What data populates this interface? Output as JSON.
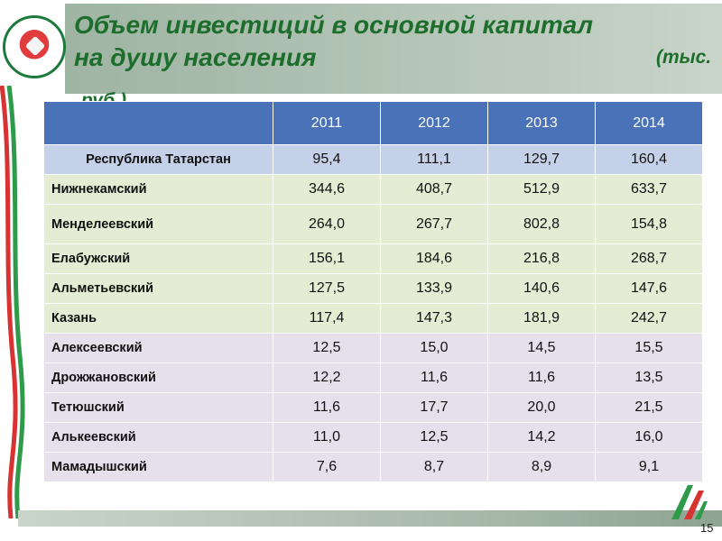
{
  "title": {
    "line1": "Объем инвестиций в основной капитал",
    "line2": "на душу населения",
    "unit_a": "(тыс.",
    "unit_b": "руб.)"
  },
  "table": {
    "header": [
      "",
      "2011",
      "2012",
      "2013",
      "2014"
    ],
    "rows": [
      {
        "name": "Республика Татарстан",
        "values": [
          "95,4",
          "111,1",
          "129,7",
          "160,4"
        ]
      },
      {
        "name": "Нижнекамский",
        "values": [
          "344,6",
          "408,7",
          "512,9",
          "633,7"
        ]
      },
      {
        "name": "Менделеевский",
        "values": [
          "264,0",
          "267,7",
          "802,8",
          "154,8"
        ]
      },
      {
        "name": "Елабужский",
        "values": [
          "156,1",
          "184,6",
          "216,8",
          "268,7"
        ]
      },
      {
        "name": "Альметьевский",
        "values": [
          "127,5",
          "133,9",
          "140,6",
          "147,6"
        ]
      },
      {
        "name": "Казань",
        "values": [
          "117,4",
          "147,3",
          "181,9",
          "242,7"
        ]
      },
      {
        "name": "Алексеевский",
        "values": [
          "12,5",
          "15,0",
          "14,5",
          "15,5"
        ]
      },
      {
        "name": "Дрожжановский",
        "values": [
          "12,2",
          "11,6",
          "11,6",
          "13,5"
        ]
      },
      {
        "name": "Тетюшский",
        "values": [
          "11,6",
          "17,7",
          "20,0",
          "21,5"
        ]
      },
      {
        "name": "Алькеевский",
        "values": [
          "11,0",
          "12,5",
          "14,2",
          "16,0"
        ]
      },
      {
        "name": "Мамадышский",
        "values": [
          "7,6",
          "8,7",
          "8,9",
          "9,1"
        ]
      }
    ]
  },
  "page_number": "15",
  "colors": {
    "title_green": "#1d6e2c",
    "header_blue": "#4a72b8",
    "row_republic": "#c5d1e8",
    "row_green": "#e4ecd3",
    "row_lilac": "#e6e0ec"
  },
  "icons": {
    "logo": "tatarstan-emblem-icon",
    "corner": "green-ribbon-logo-icon"
  }
}
